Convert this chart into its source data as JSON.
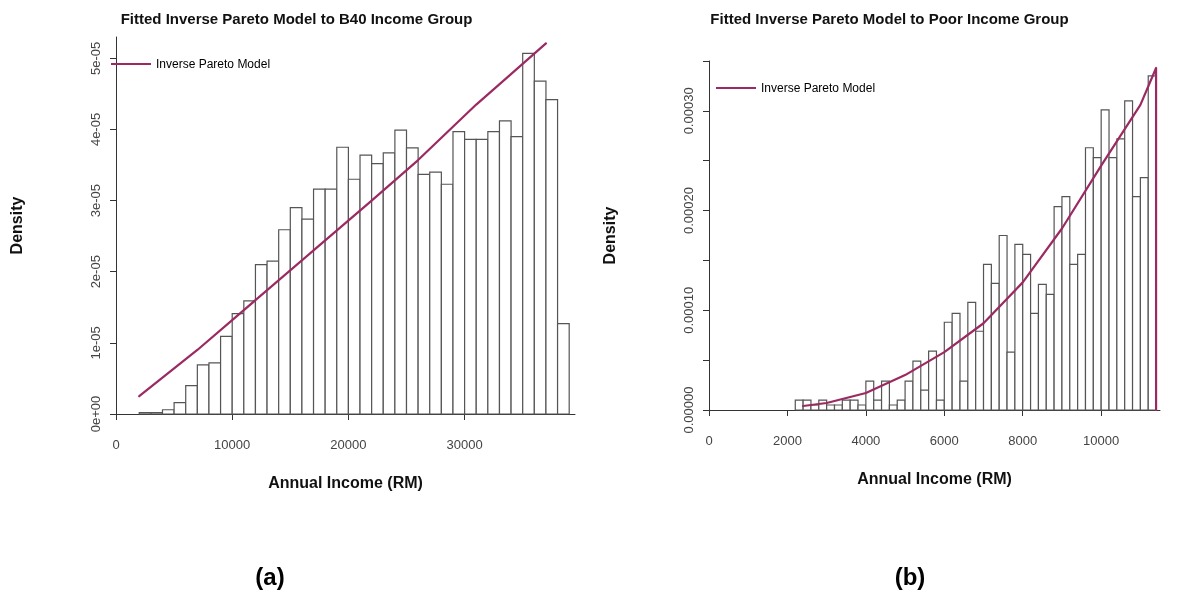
{
  "chart_data": [
    {
      "type": "histogram",
      "title": "Fitted Inverse Pareto Model to B40 Income Group",
      "xlabel": "Annual Income (RM)",
      "ylabel": "Density",
      "legend": "top left",
      "marker": "none",
      "annotations": [
        "(a)"
      ],
      "xlim": [
        0,
        39500
      ],
      "xticks": [
        0,
        10000,
        20000,
        30000
      ],
      "ylim": [
        0,
        5.3e-05
      ],
      "yticks": [
        {
          "value": 0,
          "label": "0e+00"
        },
        {
          "value": 1e-05,
          "label": "1e-05"
        },
        {
          "value": 2e-05,
          "label": "2e-05"
        },
        {
          "value": 3e-05,
          "label": "3e-05"
        },
        {
          "value": 4e-05,
          "label": "4e-05"
        },
        {
          "value": 5e-05,
          "label": "5e-05"
        }
      ],
      "series": [
        {
          "color": "#ffffff",
          "bins": [
            2000,
            3000,
            4000,
            5000,
            6000,
            7000,
            8000,
            9000,
            10000,
            11000,
            12000,
            13000,
            14000,
            15000,
            16000,
            17000,
            18000,
            19000,
            20000,
            21000,
            22000,
            23000,
            24000,
            25000,
            26000,
            27000,
            28000,
            29000,
            30000,
            31000,
            32000,
            33000,
            34000,
            35000,
            36000,
            37000,
            38000,
            39000
          ],
          "values": [
            2e-07,
            2e-07,
            6e-07,
            1.6e-06,
            4e-06,
            6.9e-06,
            7.2e-06,
            1.09e-05,
            1.41e-05,
            1.59e-05,
            2.1e-05,
            2.15e-05,
            2.59e-05,
            2.9e-05,
            2.74e-05,
            3.16e-05,
            3.16e-05,
            3.75e-05,
            3.3e-05,
            3.64e-05,
            3.52e-05,
            3.67e-05,
            3.99e-05,
            3.74e-05,
            3.37e-05,
            3.4e-05,
            3.23e-05,
            3.97e-05,
            3.86e-05,
            3.86e-05,
            3.97e-05,
            4.12e-05,
            3.9e-05,
            5.07e-05,
            4.68e-05,
            4.42e-05,
            1.27e-05
          ]
        },
        {
          "type": "line",
          "name": "Inverse Pareto Model",
          "color": "#9b2a62",
          "x": [
            2000,
            7000,
            12000,
            17000,
            22000,
            26000,
            31000,
            37000
          ],
          "values": [
            2.5e-06,
            9e-06,
            1.6e-05,
            2.3e-05,
            3e-05,
            3.57e-05,
            4.35e-05,
            5.21e-05
          ]
        }
      ]
    },
    {
      "type": "histogram",
      "title": "Fitted Inverse Pareto Model to Poor Income Group",
      "xlabel": "Annual Income (RM)",
      "ylabel": "Density",
      "legend": "top left",
      "marker": "none",
      "annotations": [
        "(b)"
      ],
      "xlim": [
        0,
        11500
      ],
      "xticks": [
        0,
        2000,
        4000,
        6000,
        8000,
        10000
      ],
      "ylim": [
        0,
        0.00035
      ],
      "yticks": [
        {
          "value": 0,
          "label": "0.00000"
        },
        {
          "value": 5e-05,
          "label": null
        },
        {
          "value": 0.0001,
          "label": "0.00010"
        },
        {
          "value": 0.00015,
          "label": null
        },
        {
          "value": 0.0002,
          "label": "0.00020"
        },
        {
          "value": 0.00025,
          "label": null
        },
        {
          "value": 0.0003,
          "label": "0.00030"
        },
        {
          "value": 0.00035,
          "label": null
        }
      ],
      "series": [
        {
          "color": "#ffffff",
          "bins": [
            2200,
            2400,
            2600,
            2800,
            3000,
            3200,
            3400,
            3600,
            3800,
            4000,
            4200,
            4400,
            4600,
            4800,
            5000,
            5200,
            5400,
            5600,
            5800,
            6000,
            6200,
            6400,
            6600,
            6800,
            7000,
            7200,
            7400,
            7600,
            7800,
            8000,
            8200,
            8400,
            8600,
            8800,
            9000,
            9200,
            9400,
            9600,
            9800,
            10000,
            10200,
            10400,
            10600,
            10800,
            11000,
            11200,
            11400
          ],
          "values": [
            1e-05,
            1e-05,
            5e-06,
            1e-05,
            5e-06,
            5e-06,
            1e-05,
            1e-05,
            5e-06,
            2.9e-05,
            1e-05,
            2.9e-05,
            5e-06,
            1e-05,
            2.9e-05,
            4.9e-05,
            2e-05,
            5.9e-05,
            1e-05,
            8.8e-05,
            9.7e-05,
            2.9e-05,
            0.000108,
            7.9e-05,
            0.000146,
            0.000127,
            0.000175,
            5.8e-05,
            0.000166,
            0.000156,
            9.7e-05,
            0.000126,
            0.000116,
            0.000204,
            0.000214,
            0.000146,
            0.000156,
            0.000263,
            0.000253,
            0.000301,
            0.000253,
            0.000272,
            0.00031,
            0.000214,
            0.000233,
            0.000335
          ]
        },
        {
          "type": "line",
          "name": "Inverse Pareto Model",
          "color": "#9b2a62",
          "x": [
            2400,
            3000,
            4000,
            5000,
            6000,
            7000,
            8000,
            9000,
            10000,
            11000,
            11400,
            11400
          ],
          "values": [
            4e-06,
            7e-06,
            1.7e-05,
            3.5e-05,
            5.8e-05,
            8.7e-05,
            0.000128,
            0.000182,
            0.000245,
            0.000306,
            0.000343,
            0
          ]
        }
      ]
    }
  ]
}
